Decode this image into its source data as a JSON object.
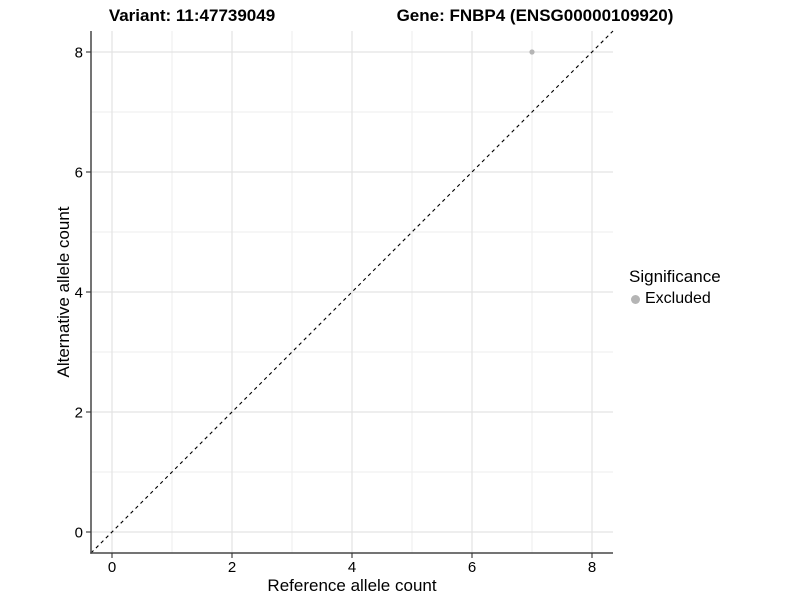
{
  "titles": {
    "variant": "Variant: 11:47739049",
    "gene": "Gene: FNBP4 (ENSG00000109920)"
  },
  "chart_data": {
    "type": "scatter",
    "xlabel": "Reference allele count",
    "ylabel": "Alternative allele count",
    "xlim": [
      -0.35,
      8.35
    ],
    "ylim": [
      -0.35,
      8.35
    ],
    "x_ticks": [
      0,
      2,
      4,
      6,
      8
    ],
    "y_ticks": [
      0,
      2,
      4,
      6,
      8
    ],
    "x_minor_ticks": [
      1,
      3,
      5,
      7
    ],
    "y_minor_ticks": [
      1,
      3,
      5,
      7
    ],
    "grid": true,
    "reference_line": {
      "slope": 1,
      "intercept": 0,
      "style": "dashed",
      "color": "#000000"
    },
    "points": [
      {
        "x": 7,
        "y": 8,
        "significance": "Excluded"
      }
    ],
    "legend": {
      "title": "Significance",
      "position": "right",
      "entries": [
        {
          "label": "Excluded",
          "color": "#b5b5b5"
        }
      ]
    },
    "colors": {
      "background": "#ffffff",
      "major_grid": "#e3e3e3",
      "minor_grid": "#ededed",
      "axis_line": "#464646",
      "tick_mark": "#333333",
      "point": "#b5b5b5",
      "text": "#000000"
    }
  }
}
